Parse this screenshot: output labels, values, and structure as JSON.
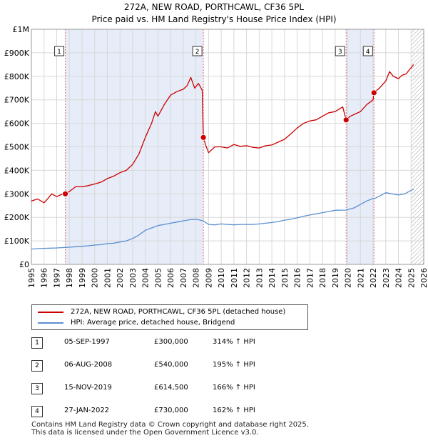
{
  "title_line1": "272A, NEW ROAD, PORTHCAWL, CF36 5PL",
  "title_line2": "Price paid vs. HM Land Registry's House Price Index (HPI)",
  "colors": {
    "property": "#cc0000",
    "hpi": "#5b8fd0",
    "shade": "#e6ecf8",
    "marker_line": "#e07070",
    "grid": "#d8d8d8",
    "hatch": "#888888"
  },
  "legend": [
    {
      "label": "272A, NEW ROAD, PORTHCAWL, CF36 5PL (detached house)",
      "color": "#cc0000"
    },
    {
      "label": "HPI: Average price, detached house, Bridgend",
      "color": "#5b8fd0"
    }
  ],
  "sales": [
    {
      "num": "1",
      "date": "05-SEP-1997",
      "price": "£300,000",
      "pct": "314% ↑ HPI"
    },
    {
      "num": "2",
      "date": "06-AUG-2008",
      "price": "£540,000",
      "pct": "195% ↑ HPI"
    },
    {
      "num": "3",
      "date": "15-NOV-2019",
      "price": "£614,500",
      "pct": "166% ↑ HPI"
    },
    {
      "num": "4",
      "date": "27-JAN-2022",
      "price": "£730,000",
      "pct": "162% ↑ HPI"
    }
  ],
  "footer": {
    "line1": "Contains HM Land Registry data © Crown copyright and database right 2025.",
    "line2": "This data is licensed under the Open Government Licence v3.0."
  },
  "chart_data": {
    "type": "line",
    "title": "272A, NEW ROAD, PORTHCAWL, CF36 5PL — Price paid vs. HM Land Registry's House Price Index (HPI)",
    "xlabel": "",
    "ylabel": "",
    "xlim": [
      1995,
      2026
    ],
    "ylim": [
      0,
      1000000
    ],
    "x_ticks": [
      1995,
      1996,
      1997,
      1998,
      1999,
      2000,
      2001,
      2002,
      2003,
      2004,
      2005,
      2006,
      2007,
      2008,
      2009,
      2010,
      2011,
      2012,
      2013,
      2014,
      2015,
      2016,
      2017,
      2018,
      2019,
      2020,
      2021,
      2022,
      2023,
      2024,
      2025,
      2026
    ],
    "y_ticks": [
      {
        "value": 0,
        "label": "£0"
      },
      {
        "value": 100000,
        "label": "£100K"
      },
      {
        "value": 200000,
        "label": "£200K"
      },
      {
        "value": 300000,
        "label": "£300K"
      },
      {
        "value": 400000,
        "label": "£400K"
      },
      {
        "value": 500000,
        "label": "£500K"
      },
      {
        "value": 600000,
        "label": "£600K"
      },
      {
        "value": 700000,
        "label": "£700K"
      },
      {
        "value": 800000,
        "label": "£800K"
      },
      {
        "value": 900000,
        "label": "£900K"
      },
      {
        "value": 1000000,
        "label": "£1M"
      }
    ],
    "grid": true,
    "series": [
      {
        "name": "272A, NEW ROAD, PORTHCAWL, CF36 5PL (detached house)",
        "color": "#cc0000",
        "x": [
          1995.0,
          1995.5,
          1996.0,
          1996.3,
          1996.6,
          1997.0,
          1997.4,
          1997.68,
          1998.0,
          1998.5,
          1999.0,
          1999.5,
          2000.0,
          2000.5,
          2001.0,
          2001.5,
          2002.0,
          2002.5,
          2003.0,
          2003.5,
          2004.0,
          2004.5,
          2004.8,
          2005.0,
          2005.5,
          2006.0,
          2006.5,
          2007.0,
          2007.3,
          2007.6,
          2007.9,
          2008.2,
          2008.5,
          2008.59,
          2008.75,
          2009.0,
          2009.5,
          2010.0,
          2010.5,
          2011.0,
          2011.5,
          2012.0,
          2012.5,
          2013.0,
          2013.5,
          2014.0,
          2014.5,
          2015.0,
          2015.5,
          2016.0,
          2016.5,
          2017.0,
          2017.5,
          2018.0,
          2018.5,
          2019.0,
          2019.3,
          2019.6,
          2019.87,
          2020.2,
          2020.6,
          2021.0,
          2021.5,
          2022.0,
          2022.07,
          2022.5,
          2023.0,
          2023.3,
          2023.6,
          2024.0,
          2024.3,
          2024.6,
          2024.9,
          2025.2
        ],
        "y": [
          270000,
          278000,
          262000,
          280000,
          300000,
          288000,
          298000,
          300000,
          310000,
          330000,
          330000,
          335000,
          342000,
          350000,
          365000,
          375000,
          390000,
          400000,
          425000,
          470000,
          540000,
          600000,
          650000,
          630000,
          680000,
          720000,
          735000,
          745000,
          760000,
          795000,
          750000,
          770000,
          740000,
          540000,
          510000,
          475000,
          500000,
          500000,
          495000,
          510000,
          502000,
          505000,
          498000,
          495000,
          505000,
          508000,
          520000,
          532000,
          555000,
          580000,
          600000,
          610000,
          615000,
          630000,
          645000,
          650000,
          660000,
          670000,
          614500,
          630000,
          640000,
          650000,
          680000,
          700000,
          730000,
          750000,
          780000,
          820000,
          800000,
          790000,
          805000,
          810000,
          830000,
          850000
        ]
      },
      {
        "name": "HPI: Average price, detached house, Bridgend",
        "color": "#5b8fd0",
        "x": [
          1995.0,
          1995.5,
          1996.0,
          1996.5,
          1997.0,
          1997.68,
          1998.0,
          1998.5,
          1999.0,
          1999.5,
          2000.0,
          2000.5,
          2001.0,
          2001.5,
          2002.0,
          2002.5,
          2003.0,
          2003.5,
          2004.0,
          2004.5,
          2005.0,
          2005.5,
          2006.0,
          2006.5,
          2007.0,
          2007.5,
          2008.0,
          2008.59,
          2009.0,
          2009.5,
          2010.0,
          2010.5,
          2011.0,
          2011.5,
          2012.0,
          2012.5,
          2013.0,
          2013.5,
          2014.0,
          2014.5,
          2015.0,
          2015.5,
          2016.0,
          2016.5,
          2017.0,
          2017.5,
          2018.0,
          2018.5,
          2019.0,
          2019.87,
          2020.5,
          2021.0,
          2021.5,
          2022.0,
          2022.07,
          2022.5,
          2023.0,
          2023.5,
          2024.0,
          2024.5,
          2025.0,
          2025.2
        ],
        "y": [
          65000,
          67000,
          68000,
          69000,
          70000,
          72000,
          73000,
          75000,
          77000,
          79000,
          82000,
          84000,
          88000,
          90000,
          95000,
          100000,
          110000,
          125000,
          145000,
          155000,
          165000,
          170000,
          175000,
          180000,
          185000,
          190000,
          192000,
          185000,
          170000,
          168000,
          172000,
          170000,
          168000,
          170000,
          170000,
          170000,
          172000,
          175000,
          178000,
          182000,
          188000,
          192000,
          198000,
          205000,
          210000,
          215000,
          220000,
          225000,
          230000,
          231000,
          240000,
          255000,
          270000,
          280000,
          279000,
          290000,
          305000,
          300000,
          295000,
          300000,
          315000,
          320000
        ]
      }
    ],
    "sales": [
      {
        "label": "1",
        "x": 1997.68,
        "y": 300000
      },
      {
        "label": "2",
        "x": 2008.59,
        "y": 540000
      },
      {
        "label": "3",
        "x": 2019.87,
        "y": 614500
      },
      {
        "label": "4",
        "x": 2022.07,
        "y": 730000
      }
    ],
    "shaded_ranges": [
      [
        1997.68,
        2008.59
      ],
      [
        2019.87,
        2022.07
      ]
    ],
    "hatched_from": 2025.0
  }
}
